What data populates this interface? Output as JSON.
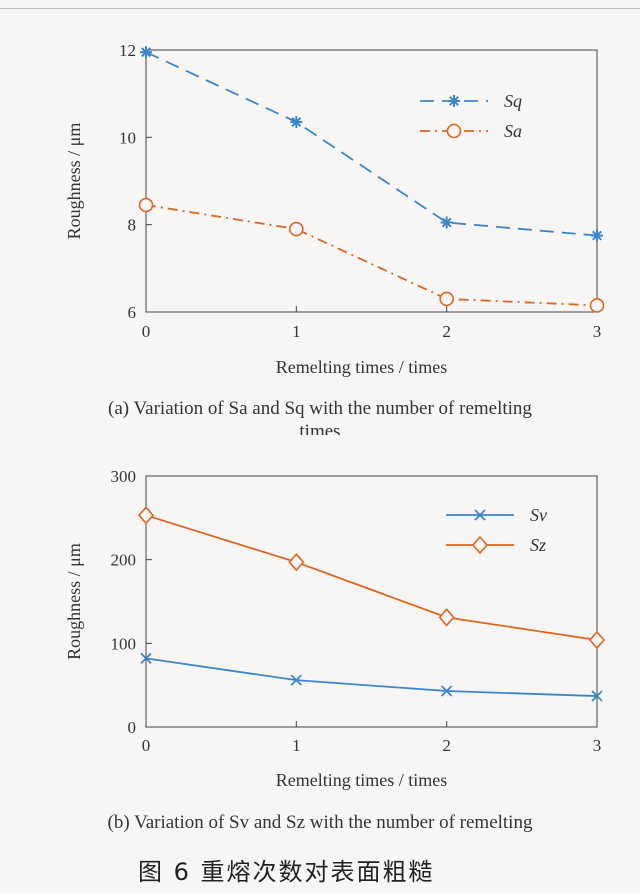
{
  "chart_data": [
    {
      "type": "line",
      "title": "",
      "xlabel": "Remelting times / times",
      "ylabel": "Roughness / μm",
      "x": [
        0,
        1,
        2,
        3
      ],
      "xticks": [
        "0",
        "1",
        "2",
        "3"
      ],
      "yticks": [
        "6",
        "8",
        "10",
        "12"
      ],
      "xlim": [
        0,
        3
      ],
      "ylim": [
        6,
        12
      ],
      "grid": false,
      "legend_position": "top-right",
      "series": [
        {
          "name": "Sq",
          "values": [
            11.95,
            10.35,
            8.05,
            7.75
          ],
          "color": "#3a86cc",
          "marker": "asterisk",
          "line_style": "dashed"
        },
        {
          "name": "Sa",
          "values": [
            8.45,
            7.9,
            6.3,
            6.15
          ],
          "color": "#e0641e",
          "marker": "circle",
          "line_style": "dash-dot"
        }
      ],
      "caption_line1": "(a) Variation of Sa and Sq with the number of remelting",
      "caption_line2": "times"
    },
    {
      "type": "line",
      "title": "",
      "xlabel": "Remelting times / times",
      "ylabel": "Roughness / μm",
      "x": [
        0,
        1,
        2,
        3
      ],
      "xticks": [
        "0",
        "1",
        "2",
        "3"
      ],
      "yticks": [
        "0",
        "100",
        "200",
        "300"
      ],
      "xlim": [
        0,
        3
      ],
      "ylim": [
        0,
        300
      ],
      "grid": false,
      "legend_position": "top-right",
      "series": [
        {
          "name": "Sv",
          "values": [
            82,
            56,
            43,
            37
          ],
          "color": "#3a86cc",
          "marker": "x",
          "line_style": "solid"
        },
        {
          "name": "Sz",
          "values": [
            253,
            197,
            131,
            104
          ],
          "color": "#e0641e",
          "marker": "diamond",
          "line_style": "solid"
        }
      ],
      "caption_line1": "(b) Variation of Sv and Sz with the number of remelting"
    }
  ],
  "figure_title": "图 6   重熔次数对表面粗糙"
}
